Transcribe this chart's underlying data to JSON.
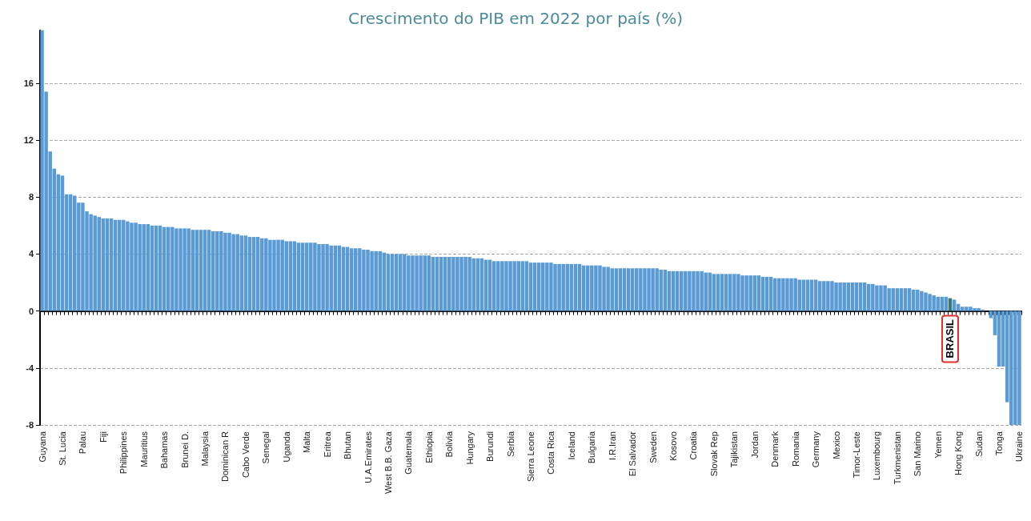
{
  "chart_data": {
    "type": "bar",
    "title": "Crescimento do PIB em 2022 por país (%)",
    "categories": [
      "Guyana",
      null,
      null,
      null,
      null,
      "St. Lucia",
      null,
      null,
      null,
      null,
      "Palau",
      null,
      null,
      null,
      null,
      "Fiji",
      null,
      null,
      null,
      null,
      "Philippines",
      null,
      null,
      null,
      null,
      "Mauritius",
      null,
      null,
      null,
      null,
      "Bahamas",
      null,
      null,
      null,
      null,
      "Brunei D.",
      null,
      null,
      null,
      null,
      "Malaysia",
      null,
      null,
      null,
      null,
      "Dominican R",
      null,
      null,
      null,
      null,
      "Cabo Verde",
      null,
      null,
      null,
      null,
      "Senegal",
      null,
      null,
      null,
      null,
      "Uganda",
      null,
      null,
      null,
      null,
      "Malta",
      null,
      null,
      null,
      null,
      "Eritrea",
      null,
      null,
      null,
      null,
      "Bhutan",
      null,
      null,
      null,
      null,
      "U.A.Emirates",
      null,
      null,
      null,
      null,
      "West B.B. Gaza",
      null,
      null,
      null,
      null,
      "Guatemala",
      null,
      null,
      null,
      null,
      "Ethiopia",
      null,
      null,
      null,
      null,
      "Bolivia",
      null,
      null,
      null,
      null,
      "Hungary",
      null,
      null,
      null,
      null,
      "Burundi",
      null,
      null,
      null,
      null,
      "Serbia",
      null,
      null,
      null,
      null,
      "Sierra Leone",
      null,
      null,
      null,
      null,
      "Costa Rica",
      null,
      null,
      null,
      null,
      "Iceland",
      null,
      null,
      null,
      null,
      "Bulgaria",
      null,
      null,
      null,
      null,
      "I.R.Iran",
      null,
      null,
      null,
      null,
      "El Salvador",
      null,
      null,
      null,
      null,
      "Sweden",
      null,
      null,
      null,
      null,
      "Kosovo",
      null,
      null,
      null,
      null,
      "Croatia",
      null,
      null,
      null,
      null,
      "Slovak Rep",
      null,
      null,
      null,
      null,
      "Tajikistan",
      null,
      null,
      null,
      null,
      "Jordan",
      null,
      null,
      null,
      null,
      "Denmark",
      null,
      null,
      null,
      null,
      "Romania",
      null,
      null,
      null,
      null,
      "Germany",
      null,
      null,
      null,
      null,
      "Mexico",
      null,
      null,
      null,
      null,
      "Timor-Leste",
      null,
      null,
      null,
      null,
      "Luxembourg",
      null,
      null,
      null,
      null,
      "Turkmenistan",
      null,
      null,
      null,
      null,
      "San Marino",
      null,
      null,
      null,
      null,
      "Yemen",
      null,
      null,
      null,
      null,
      "Hong Kong",
      null,
      null,
      null,
      null,
      "Sudan",
      null,
      null,
      null,
      null,
      "Tonga",
      null,
      null,
      null,
      null,
      "Ukraine"
    ],
    "values": [
      19.7,
      15.4,
      11.2,
      10.0,
      9.6,
      9.5,
      8.2,
      8.2,
      8.1,
      7.6,
      7.6,
      7.0,
      6.8,
      6.7,
      6.6,
      6.5,
      6.5,
      6.5,
      6.4,
      6.4,
      6.4,
      6.3,
      6.2,
      6.2,
      6.1,
      6.1,
      6.1,
      6.0,
      6.0,
      6.0,
      5.9,
      5.9,
      5.9,
      5.8,
      5.8,
      5.8,
      5.8,
      5.7,
      5.7,
      5.7,
      5.7,
      5.7,
      5.6,
      5.6,
      5.6,
      5.5,
      5.5,
      5.4,
      5.4,
      5.3,
      5.3,
      5.2,
      5.2,
      5.2,
      5.1,
      5.1,
      5.0,
      5.0,
      5.0,
      5.0,
      4.9,
      4.9,
      4.9,
      4.8,
      4.8,
      4.8,
      4.8,
      4.8,
      4.7,
      4.7,
      4.7,
      4.6,
      4.6,
      4.6,
      4.5,
      4.5,
      4.4,
      4.4,
      4.4,
      4.3,
      4.3,
      4.2,
      4.2,
      4.2,
      4.1,
      4.0,
      4.0,
      4.0,
      4.0,
      4.0,
      3.9,
      3.9,
      3.9,
      3.9,
      3.9,
      3.9,
      3.8,
      3.8,
      3.8,
      3.8,
      3.8,
      3.8,
      3.8,
      3.8,
      3.8,
      3.8,
      3.7,
      3.7,
      3.7,
      3.6,
      3.6,
      3.5,
      3.5,
      3.5,
      3.5,
      3.5,
      3.5,
      3.5,
      3.5,
      3.5,
      3.4,
      3.4,
      3.4,
      3.4,
      3.4,
      3.4,
      3.3,
      3.3,
      3.3,
      3.3,
      3.3,
      3.3,
      3.3,
      3.2,
      3.2,
      3.2,
      3.2,
      3.2,
      3.1,
      3.1,
      3.0,
      3.0,
      3.0,
      3.0,
      3.0,
      3.0,
      3.0,
      3.0,
      3.0,
      3.0,
      3.0,
      3.0,
      2.9,
      2.9,
      2.8,
      2.8,
      2.8,
      2.8,
      2.8,
      2.8,
      2.8,
      2.8,
      2.8,
      2.7,
      2.7,
      2.6,
      2.6,
      2.6,
      2.6,
      2.6,
      2.6,
      2.6,
      2.5,
      2.5,
      2.5,
      2.5,
      2.5,
      2.4,
      2.4,
      2.4,
      2.3,
      2.3,
      2.3,
      2.3,
      2.3,
      2.3,
      2.2,
      2.2,
      2.2,
      2.2,
      2.2,
      2.1,
      2.1,
      2.1,
      2.1,
      2.0,
      2.0,
      2.0,
      2.0,
      2.0,
      2.0,
      2.0,
      2.0,
      1.9,
      1.9,
      1.8,
      1.8,
      1.8,
      1.6,
      1.6,
      1.6,
      1.6,
      1.6,
      1.6,
      1.5,
      1.5,
      1.4,
      1.3,
      1.2,
      1.1,
      1.0,
      1.0,
      1.0,
      0.9,
      0.8,
      0.5,
      0.3,
      0.3,
      0.3,
      0.2,
      0.2,
      0.1,
      0.0,
      -0.5,
      -1.7,
      -3.9,
      -3.9,
      -6.4,
      -8,
      -8,
      -8
    ],
    "colors": [
      "#5b9bd5",
      "#5b9bd5",
      "#5b9bd5",
      "#5b9bd5",
      "#5b9bd5",
      "#5b9bd5",
      "#5b9bd5",
      "#5b9bd5",
      "#5b9bd5",
      "#5b9bd5",
      "#5b9bd5",
      "#5b9bd5",
      "#5b9bd5",
      "#5b9bd5",
      "#5b9bd5",
      "#5b9bd5",
      "#5b9bd5",
      "#5b9bd5",
      "#5b9bd5",
      "#5b9bd5",
      "#5b9bd5",
      "#5b9bd5",
      "#5b9bd5",
      "#5b9bd5",
      "#5b9bd5",
      "#5b9bd5",
      "#5b9bd5",
      "#5b9bd5",
      "#5b9bd5",
      "#5b9bd5",
      "#5b9bd5",
      "#5b9bd5",
      "#5b9bd5",
      "#5b9bd5",
      "#5b9bd5",
      "#5b9bd5",
      "#5b9bd5",
      "#5b9bd5",
      "#5b9bd5",
      "#5b9bd5",
      "#5b9bd5",
      "#5b9bd5",
      "#5b9bd5",
      "#5b9bd5",
      "#5b9bd5",
      "#5b9bd5",
      "#5b9bd5",
      "#5b9bd5",
      "#5b9bd5",
      "#5b9bd5",
      "#5b9bd5",
      "#5b9bd5",
      "#5b9bd5",
      "#5b9bd5",
      "#5b9bd5",
      "#5b9bd5",
      "#5b9bd5",
      "#5b9bd5",
      "#5b9bd5",
      "#5b9bd5",
      "#5b9bd5",
      "#5b9bd5",
      "#5b9bd5",
      "#5b9bd5",
      "#5b9bd5",
      "#5b9bd5",
      "#5b9bd5",
      "#5b9bd5",
      "#5b9bd5",
      "#5b9bd5",
      "#5b9bd5",
      "#5b9bd5",
      "#5b9bd5",
      "#5b9bd5",
      "#5b9bd5",
      "#5b9bd5",
      "#5b9bd5",
      "#5b9bd5",
      "#5b9bd5",
      "#5b9bd5",
      "#5b9bd5",
      "#5b9bd5",
      "#5b9bd5",
      "#5b9bd5",
      "#5b9bd5",
      "#5b9bd5",
      "#5b9bd5",
      "#5b9bd5",
      "#5b9bd5",
      "#5b9bd5",
      "#5b9bd5",
      "#5b9bd5",
      "#5b9bd5",
      "#5b9bd5",
      "#5b9bd5",
      "#5b9bd5",
      "#5b9bd5",
      "#5b9bd5",
      "#5b9bd5",
      "#5b9bd5",
      "#5b9bd5",
      "#5b9bd5",
      "#5b9bd5",
      "#5b9bd5",
      "#5b9bd5",
      "#5b9bd5",
      "#5b9bd5",
      "#5b9bd5",
      "#5b9bd5",
      "#5b9bd5",
      "#5b9bd5",
      "#5b9bd5",
      "#5b9bd5",
      "#5b9bd5",
      "#5b9bd5",
      "#5b9bd5",
      "#5b9bd5",
      "#5b9bd5",
      "#5b9bd5",
      "#5b9bd5",
      "#5b9bd5",
      "#5b9bd5",
      "#5b9bd5",
      "#5b9bd5",
      "#5b9bd5",
      "#5b9bd5",
      "#5b9bd5",
      "#5b9bd5",
      "#5b9bd5",
      "#5b9bd5",
      "#5b9bd5",
      "#5b9bd5",
      "#5b9bd5",
      "#5b9bd5",
      "#5b9bd5",
      "#5b9bd5",
      "#5b9bd5",
      "#5b9bd5",
      "#5b9bd5",
      "#5b9bd5",
      "#5b9bd5",
      "#5b9bd5",
      "#5b9bd5",
      "#5b9bd5",
      "#5b9bd5",
      "#5b9bd5",
      "#5b9bd5",
      "#5b9bd5",
      "#5b9bd5",
      "#5b9bd5",
      "#5b9bd5",
      "#5b9bd5",
      "#5b9bd5",
      "#5b9bd5",
      "#5b9bd5",
      "#5b9bd5",
      "#5b9bd5",
      "#5b9bd5",
      "#5b9bd5",
      "#5b9bd5",
      "#5b9bd5",
      "#5b9bd5",
      "#5b9bd5",
      "#5b9bd5",
      "#5b9bd5",
      "#5b9bd5",
      "#5b9bd5",
      "#5b9bd5",
      "#5b9bd5",
      "#5b9bd5",
      "#5b9bd5",
      "#5b9bd5",
      "#5b9bd5",
      "#5b9bd5",
      "#5b9bd5",
      "#5b9bd5",
      "#5b9bd5",
      "#5b9bd5",
      "#5b9bd5",
      "#5b9bd5",
      "#5b9bd5",
      "#5b9bd5",
      "#5b9bd5",
      "#5b9bd5",
      "#5b9bd5",
      "#5b9bd5",
      "#5b9bd5",
      "#5b9bd5",
      "#5b9bd5",
      "#5b9bd5",
      "#5b9bd5",
      "#5b9bd5",
      "#5b9bd5",
      "#5b9bd5",
      "#5b9bd5",
      "#5b9bd5",
      "#5b9bd5",
      "#5b9bd5",
      "#5b9bd5",
      "#5b9bd5",
      "#5b9bd5",
      "#5b9bd5",
      "#5b9bd5",
      "#5b9bd5",
      "#5b9bd5",
      "#5b9bd5",
      "#5b9bd5",
      "#5b9bd5",
      "#5b9bd5",
      "#5b9bd5",
      "#5b9bd5",
      "#5b9bd5",
      "#5b9bd5",
      "#5b9bd5",
      "#5b9bd5",
      "#5b9bd5",
      "#5b9bd5",
      "#5b9bd5",
      "#5b9bd5",
      "#5b9bd5",
      "#5b9bd5",
      "#5b9bd5",
      "#5b9bd5",
      "#3d7a6e",
      "#5b9bd5",
      "#5b9bd5",
      "#5b9bd5",
      "#5b9bd5",
      "#5b9bd5",
      "#5b9bd5",
      "#5b9bd5",
      "#5b9bd5",
      "#5b9bd5",
      "#5b9bd5",
      "#5b9bd5",
      "#5b9bd5",
      "#5b9bd5",
      "#5b9bd5",
      "#5b9bd5",
      "#5b9bd5",
      "#5b9bd5"
    ],
    "annotations": [
      "BRASIL"
    ],
    "ylim": [
      -8,
      19.7
    ],
    "yticks": [
      -8,
      -4,
      0,
      4,
      8,
      12,
      16
    ],
    "grid": "y"
  }
}
